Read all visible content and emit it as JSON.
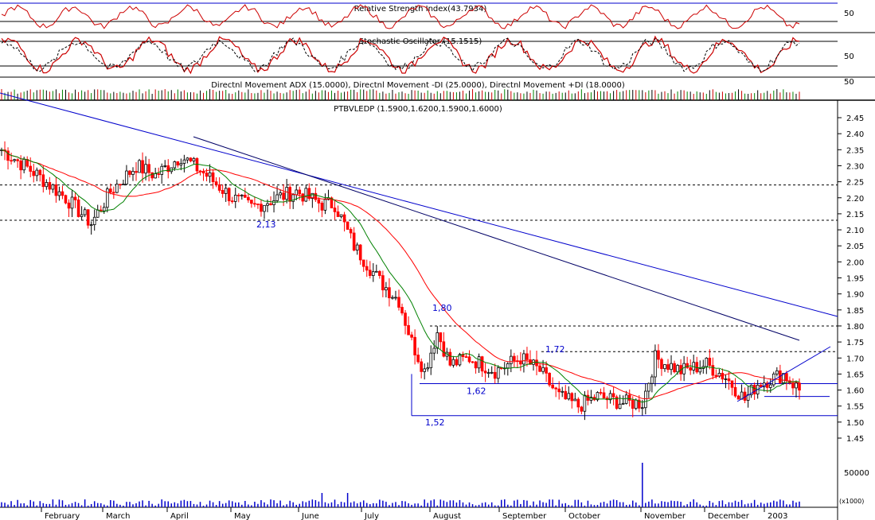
{
  "chart_data": {
    "type": "candlestick",
    "panels": {
      "rsi": {
        "label": "Relative Strength Index(43.7934)",
        "level": "50"
      },
      "stochastic": {
        "label": "Stochastic Oscillator (15.1515)",
        "level": "50"
      },
      "dmi": {
        "label": "Directnl Movement ADX (15.0000), Directnl Movement -DI (25.0000), Directnl Movement +DI (18.0000)",
        "level": "50"
      },
      "price": {
        "label": "PTBVLEDP (1.5900,1.6200,1.5900,1.6000)",
        "ylim": [
          1.42,
          2.47
        ],
        "ticks": [
          "2.45",
          "2.40",
          "2.35",
          "2.30",
          "2.25",
          "2.20",
          "2.15",
          "2.10",
          "2.05",
          "2.00",
          "1.95",
          "1.90",
          "1.85",
          "1.80",
          "1.75",
          "1.70",
          "1.65",
          "1.60",
          "1.55",
          "1.50",
          "1.45"
        ],
        "annotations": [
          {
            "text": "2,13",
            "x": "May",
            "y": 2.13
          },
          {
            "text": "1,80",
            "x": "August",
            "y": 1.8
          },
          {
            "text": "1,72",
            "x": "September",
            "y": 1.72
          },
          {
            "text": "1,62",
            "x": "August",
            "y": 1.62
          },
          {
            "text": "1,52",
            "x": "August",
            "y": 1.52
          }
        ],
        "horizontal_levels": [
          2.24,
          2.13,
          1.8,
          1.72,
          1.62,
          1.52
        ]
      },
      "volume": {
        "tick": "50000",
        "unit": "(x1000)"
      }
    },
    "months": [
      "February",
      "March",
      "April",
      "May",
      "June",
      "July",
      "August",
      "September",
      "October",
      "November",
      "December",
      "2003"
    ],
    "series": [
      {
        "name": "close",
        "x": [
          "Jan",
          "Feb",
          "Mar",
          "Apr",
          "May",
          "Jun",
          "Jul",
          "Aug",
          "Sep",
          "Oct",
          "Nov",
          "Dec",
          "Jan"
        ],
        "values": [
          2.35,
          2.15,
          2.28,
          2.3,
          2.17,
          2.2,
          1.9,
          1.7,
          1.68,
          1.55,
          1.68,
          1.62,
          1.6
        ]
      }
    ],
    "colors": {
      "up": "#000000",
      "down": "#ff0000",
      "ma_short": "#008000",
      "ma_long": "#ff0000",
      "trendline": "#0000cc",
      "trendline2": "#000066",
      "volume": "#0000cc"
    }
  }
}
